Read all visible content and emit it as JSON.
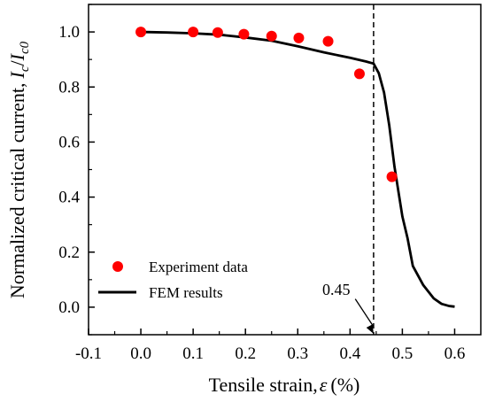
{
  "chart_data": {
    "type": "scatter",
    "xlabel_text": "Tensile strain,",
    "xlabel_symbol": "ε",
    "xlabel_unit": "(%)",
    "ylabel_text": "Normalized critical current,",
    "ylabel_i": "I",
    "ylabel_sub_c": "c",
    "ylabel_slash": "/",
    "ylabel_sub_c0": "c0",
    "xlim": [
      -0.1,
      0.65
    ],
    "ylim": [
      -0.1,
      1.1
    ],
    "x_ticks": [
      -0.1,
      0.0,
      0.1,
      0.2,
      0.3,
      0.4,
      0.5,
      0.6
    ],
    "x_tick_labels": [
      "-0.1",
      "0.0",
      "0.1",
      "0.2",
      "0.3",
      "0.4",
      "0.5",
      "0.6"
    ],
    "y_ticks": [
      0.0,
      0.2,
      0.4,
      0.6,
      0.8,
      1.0
    ],
    "y_tick_labels": [
      "0.0",
      "0.2",
      "0.4",
      "0.6",
      "0.8",
      "1.0"
    ],
    "grid": false,
    "legend_position": "lower-left",
    "series": [
      {
        "name": "Experiment data",
        "kind": "scatter",
        "color": "#ff0000",
        "points": [
          [
            0.0,
            1.0
          ],
          [
            0.1,
            1.0
          ],
          [
            0.147,
            0.998
          ],
          [
            0.197,
            0.992
          ],
          [
            0.25,
            0.985
          ],
          [
            0.302,
            0.978
          ],
          [
            0.358,
            0.966
          ],
          [
            0.418,
            0.848
          ],
          [
            0.48,
            0.474
          ]
        ]
      },
      {
        "name": "FEM results",
        "kind": "line",
        "color": "#000000",
        "points": [
          [
            0.0,
            1.0
          ],
          [
            0.05,
            0.998
          ],
          [
            0.1,
            0.995
          ],
          [
            0.15,
            0.99
          ],
          [
            0.2,
            0.98
          ],
          [
            0.25,
            0.968
          ],
          [
            0.3,
            0.948
          ],
          [
            0.35,
            0.926
          ],
          [
            0.4,
            0.906
          ],
          [
            0.43,
            0.893
          ],
          [
            0.445,
            0.885
          ],
          [
            0.455,
            0.85
          ],
          [
            0.465,
            0.78
          ],
          [
            0.475,
            0.66
          ],
          [
            0.485,
            0.51
          ],
          [
            0.5,
            0.33
          ],
          [
            0.51,
            0.25
          ],
          [
            0.52,
            0.15
          ],
          [
            0.54,
            0.08
          ],
          [
            0.56,
            0.032
          ],
          [
            0.575,
            0.012
          ],
          [
            0.59,
            0.004
          ],
          [
            0.6,
            0.002
          ]
        ]
      }
    ],
    "vline": {
      "x": 0.445,
      "style": "dashed"
    },
    "annotation": {
      "text": "0.45",
      "arrow_to": [
        0.445,
        -0.1
      ],
      "from": [
        0.41,
        0.03
      ]
    }
  }
}
